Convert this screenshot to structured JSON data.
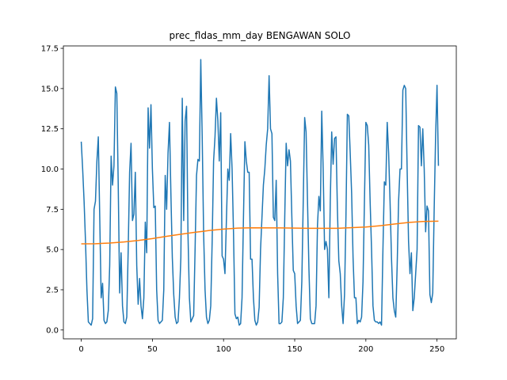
{
  "chart_data": {
    "type": "line",
    "title": "prec_fldas_mm_day BENGAWAN SOLO",
    "xlim": [
      -12.55,
      263.55
    ],
    "ylim": [
      -0.55,
      17.65
    ],
    "xticks": [
      0,
      50,
      100,
      150,
      200,
      250
    ],
    "yticks": [
      {
        "value": 0,
        "label": "0.0"
      },
      {
        "value": 2.5,
        "label": "2.5"
      },
      {
        "value": 5,
        "label": "5.0"
      },
      {
        "value": 7.5,
        "label": "7.5"
      },
      {
        "value": 10,
        "label": "10.0"
      },
      {
        "value": 12.5,
        "label": "12.5"
      },
      {
        "value": 15,
        "label": "15.0"
      },
      {
        "value": 17.5,
        "label": "17.5"
      }
    ],
    "grid": false,
    "series": [
      {
        "color": "#1f77b4",
        "x": [
          0,
          1,
          2,
          3,
          4,
          5,
          6,
          7,
          8,
          9,
          10,
          11,
          12,
          13,
          14,
          15,
          16,
          17,
          18,
          19,
          20,
          21,
          22,
          23,
          24,
          25,
          26,
          27,
          28,
          29,
          30,
          31,
          32,
          33,
          34,
          35,
          36,
          37,
          38,
          39,
          40,
          41,
          42,
          43,
          44,
          45,
          46,
          47,
          48,
          49,
          50,
          51,
          52,
          53,
          54,
          55,
          56,
          57,
          58,
          59,
          60,
          61,
          62,
          63,
          64,
          65,
          66,
          67,
          68,
          69,
          70,
          71,
          72,
          73,
          74,
          75,
          76,
          77,
          78,
          79,
          80,
          81,
          82,
          83,
          84,
          85,
          86,
          87,
          88,
          89,
          90,
          91,
          92,
          93,
          94,
          95,
          96,
          97,
          98,
          99,
          100,
          101,
          102,
          103,
          104,
          105,
          106,
          107,
          108,
          109,
          110,
          111,
          112,
          113,
          114,
          115,
          116,
          117,
          118,
          119,
          120,
          121,
          122,
          123,
          124,
          125,
          126,
          127,
          128,
          129,
          130,
          131,
          132,
          133,
          134,
          135,
          136,
          137,
          138,
          139,
          140,
          141,
          142,
          143,
          144,
          145,
          146,
          147,
          148,
          149,
          150,
          151,
          152,
          153,
          154,
          155,
          156,
          157,
          158,
          159,
          160,
          161,
          162,
          163,
          164,
          165,
          166,
          167,
          168,
          169,
          170,
          171,
          172,
          173,
          174,
          175,
          176,
          177,
          178,
          179,
          180,
          181,
          182,
          183,
          184,
          185,
          186,
          187,
          188,
          189,
          190,
          191,
          192,
          193,
          194,
          195,
          196,
          197,
          198,
          199,
          200,
          201,
          202,
          203,
          204,
          205,
          206,
          207,
          208,
          209,
          210,
          211,
          212,
          213,
          214,
          215,
          216,
          217,
          218,
          219,
          220,
          221,
          222,
          223,
          224,
          225,
          226,
          227,
          228,
          229,
          230,
          231,
          232,
          233,
          234,
          235,
          236,
          237,
          238,
          239,
          240,
          241,
          242,
          243,
          244,
          245,
          246,
          247,
          248,
          249,
          250,
          251
        ],
        "values": [
          11.7,
          10,
          8,
          5.5,
          2.5,
          0.5,
          0.4,
          0.3,
          0.7,
          7.5,
          8,
          10.5,
          12,
          7,
          2,
          2.9,
          0.6,
          0.4,
          0.5,
          1.2,
          4,
          10.8,
          9,
          10.2,
          15.1,
          14.7,
          9,
          2.3,
          4.8,
          1.5,
          0.5,
          0.4,
          0.8,
          5,
          9.8,
          11.6,
          6.8,
          7.2,
          9.8,
          4,
          1.6,
          3.2,
          1.5,
          0.7,
          2,
          6.7,
          4.8,
          13.8,
          11.3,
          14,
          10,
          7.6,
          7.7,
          2.5,
          0.6,
          0.4,
          0.5,
          0.6,
          2.5,
          9.6,
          7.5,
          11,
          12.9,
          8.5,
          4.5,
          2.2,
          0.8,
          0.4,
          0.5,
          2,
          4.5,
          14.4,
          6.8,
          13,
          13.9,
          6,
          2,
          0.5,
          0.7,
          0.9,
          5,
          9.6,
          10.6,
          10.5,
          16.8,
          12,
          6,
          2.5,
          0.8,
          0.4,
          0.6,
          1.5,
          5.5,
          10.5,
          12,
          14.4,
          13,
          10.5,
          13.5,
          4.6,
          4.4,
          3.5,
          6.8,
          10,
          9.3,
          12.2,
          10,
          6,
          1,
          0.7,
          0.8,
          0.3,
          0.4,
          2,
          7,
          11.7,
          10.5,
          9.8,
          9.8,
          4.4,
          4.4,
          2,
          0.6,
          0.3,
          0.5,
          1.4,
          5,
          7,
          9,
          10,
          11.5,
          12.5,
          15.8,
          12.5,
          12.2,
          7,
          6.8,
          9.3,
          3.5,
          0.4,
          0.4,
          0.5,
          2,
          7,
          11.6,
          10.2,
          11.2,
          10.5,
          7,
          3.7,
          3.5,
          1.5,
          0.4,
          0.5,
          0.6,
          3,
          8,
          13.2,
          12.3,
          8,
          3.8,
          0.7,
          0.4,
          0.4,
          0.4,
          1.5,
          6.5,
          8.3,
          7.4,
          13.6,
          10,
          5,
          5.5,
          5,
          2,
          8,
          12.3,
          10.3,
          11.9,
          12,
          7.5,
          4.3,
          3.5,
          1.5,
          0.4,
          2.2,
          7,
          13.4,
          13.3,
          11,
          8.5,
          4.5,
          2,
          2,
          0.4,
          0.6,
          0.5,
          0.8,
          3,
          8,
          12.9,
          12.7,
          11.5,
          8,
          5,
          1.5,
          0.6,
          0.5,
          0.5,
          0.4,
          0.5,
          0.3,
          5,
          9.2,
          9,
          12.9,
          11,
          8,
          4.5,
          2,
          1.2,
          0.8,
          4,
          8,
          10,
          10,
          14.9,
          15.2,
          15,
          10,
          5.5,
          3.5,
          4.8,
          1.2,
          2,
          3.5,
          5,
          12.7,
          12.6,
          10.2,
          12.5,
          10,
          6.1,
          7.7,
          7.4,
          2.2,
          1.7,
          2.3,
          7.5,
          12,
          15.2,
          10.2
        ]
      },
      {
        "color": "#ff7f0e",
        "x": [
          0,
          10,
          20,
          30,
          40,
          50,
          60,
          70,
          80,
          90,
          100,
          110,
          120,
          140,
          160,
          180,
          200,
          210,
          220,
          230,
          240,
          251
        ],
        "values": [
          5.35,
          5.36,
          5.4,
          5.47,
          5.56,
          5.68,
          5.82,
          5.95,
          6.07,
          6.18,
          6.27,
          6.33,
          6.35,
          6.34,
          6.32,
          6.32,
          6.4,
          6.48,
          6.58,
          6.68,
          6.74,
          6.76
        ]
      }
    ]
  }
}
